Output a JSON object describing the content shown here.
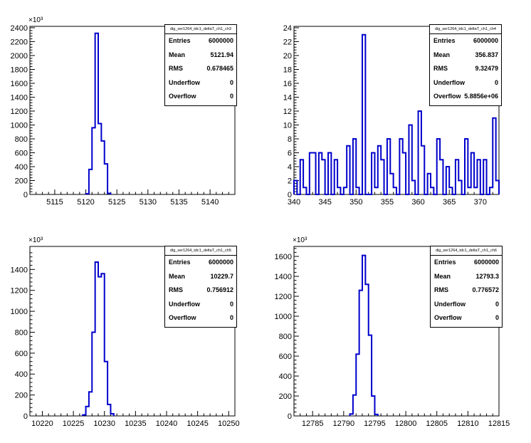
{
  "chart_data": [
    {
      "type": "bar",
      "title": "dig_ser1264_tdc1_deltaT_ch1_ch3",
      "exponent_label": "×10³",
      "xlim": [
        5111,
        5144
      ],
      "ylim": [
        0,
        2420
      ],
      "xticks": [
        5115,
        5120,
        5125,
        5130,
        5135,
        5140
      ],
      "yticks": [
        0,
        200,
        400,
        600,
        800,
        1000,
        1200,
        1400,
        1600,
        1800,
        2000,
        2200,
        2400
      ],
      "bin_width": 0.5,
      "bins": [
        [
          5120.0,
          10
        ],
        [
          5120.5,
          360
        ],
        [
          5121.0,
          960
        ],
        [
          5121.5,
          2320
        ],
        [
          5122.0,
          1020
        ],
        [
          5122.5,
          770
        ],
        [
          5123.0,
          440
        ],
        [
          5123.5,
          15
        ]
      ],
      "stats": {
        "name": "dig_ser1264_tdc1_deltaT_ch1_ch3",
        "rows": [
          {
            "label": "Entries",
            "value": "6000000"
          },
          {
            "label": "Mean",
            "value": "5121.94"
          },
          {
            "label": "RMS",
            "value": "0.678465"
          },
          {
            "label": "Underflow",
            "value": "0"
          },
          {
            "label": "Overflow",
            "value": "0"
          }
        ]
      }
    },
    {
      "type": "bar",
      "title": "dig_ser1264_tdc1_deltaT_ch1_ch4",
      "exponent_label": "",
      "xlim": [
        340,
        373
      ],
      "ylim": [
        0,
        24.2
      ],
      "xticks": [
        340,
        345,
        350,
        355,
        360,
        365,
        370
      ],
      "yticks": [
        0,
        2,
        4,
        6,
        8,
        10,
        12,
        14,
        16,
        18,
        20,
        22,
        24
      ],
      "bin_width": 0.5,
      "bins": [
        [
          340.0,
          2
        ],
        [
          340.5,
          0
        ],
        [
          341.0,
          5
        ],
        [
          341.5,
          1
        ],
        [
          342.0,
          0
        ],
        [
          342.5,
          6
        ],
        [
          343.0,
          6
        ],
        [
          343.5,
          0
        ],
        [
          344.0,
          6
        ],
        [
          344.5,
          5
        ],
        [
          345.0,
          0
        ],
        [
          345.5,
          6
        ],
        [
          346.0,
          0
        ],
        [
          346.5,
          5
        ],
        [
          347.0,
          1
        ],
        [
          347.5,
          0
        ],
        [
          348.0,
          1
        ],
        [
          348.5,
          7
        ],
        [
          349.0,
          0
        ],
        [
          349.5,
          8
        ],
        [
          350.0,
          1
        ],
        [
          350.5,
          0
        ],
        [
          351.0,
          23
        ],
        [
          351.5,
          0
        ],
        [
          352.0,
          0
        ],
        [
          352.5,
          6
        ],
        [
          353.0,
          1
        ],
        [
          353.5,
          7
        ],
        [
          354.0,
          5
        ],
        [
          354.5,
          0
        ],
        [
          355.0,
          8
        ],
        [
          355.5,
          3
        ],
        [
          356.0,
          1
        ],
        [
          356.5,
          0
        ],
        [
          357.0,
          8
        ],
        [
          357.5,
          6
        ],
        [
          358.0,
          0
        ],
        [
          358.5,
          10
        ],
        [
          359.0,
          2
        ],
        [
          359.5,
          0
        ],
        [
          360.0,
          12
        ],
        [
          360.5,
          7
        ],
        [
          361.0,
          0
        ],
        [
          361.5,
          3
        ],
        [
          362.0,
          1
        ],
        [
          362.5,
          0
        ],
        [
          363.0,
          8
        ],
        [
          363.5,
          5
        ],
        [
          364.0,
          0
        ],
        [
          364.5,
          4
        ],
        [
          365.0,
          1
        ],
        [
          365.5,
          0
        ],
        [
          366.0,
          5
        ],
        [
          366.5,
          2
        ],
        [
          367.0,
          0
        ],
        [
          367.5,
          8
        ],
        [
          368.0,
          1
        ],
        [
          368.5,
          6
        ],
        [
          369.0,
          1
        ],
        [
          369.5,
          5
        ],
        [
          370.0,
          0
        ],
        [
          370.5,
          5
        ],
        [
          371.0,
          0
        ],
        [
          371.5,
          1
        ],
        [
          372.0,
          11
        ],
        [
          372.5,
          2
        ]
      ],
      "stats": {
        "name": "dig_ser1264_tdc1_deltaT_ch1_ch4",
        "rows": [
          {
            "label": "Entries",
            "value": "6000000"
          },
          {
            "label": "Mean",
            "value": "356.837"
          },
          {
            "label": "RMS",
            "value": "9.32479"
          },
          {
            "label": "Underflow",
            "value": "0"
          },
          {
            "label": "Overflow",
            "value": "5.8856e+06"
          }
        ]
      }
    },
    {
      "type": "bar",
      "title": "dig_ser1264_tdc1_deltaT_ch1_ch5",
      "exponent_label": "×10³",
      "xlim": [
        10218,
        10251
      ],
      "ylim": [
        0,
        1620
      ],
      "xticks": [
        10220,
        10225,
        10230,
        10235,
        10240,
        10245,
        10250
      ],
      "yticks": [
        0,
        200,
        400,
        600,
        800,
        1000,
        1200,
        1400
      ],
      "bin_width": 0.5,
      "bins": [
        [
          10226.5,
          10
        ],
        [
          10227.0,
          90
        ],
        [
          10227.5,
          230
        ],
        [
          10228.0,
          800
        ],
        [
          10228.5,
          1470
        ],
        [
          10229.0,
          1330
        ],
        [
          10229.5,
          1360
        ],
        [
          10230.0,
          520
        ],
        [
          10230.5,
          110
        ],
        [
          10231.0,
          20
        ]
      ],
      "stats": {
        "name": "dig_ser1264_tdc1_deltaT_ch1_ch5",
        "rows": [
          {
            "label": "Entries",
            "value": "6000000"
          },
          {
            "label": "Mean",
            "value": "10229.7"
          },
          {
            "label": "RMS",
            "value": "0.756912"
          },
          {
            "label": "Underflow",
            "value": "0"
          },
          {
            "label": "Overflow",
            "value": "0"
          }
        ]
      }
    },
    {
      "type": "bar",
      "title": "dig_ser1264_tdc1_deltaT_ch1_ch6",
      "exponent_label": "×10³",
      "xlim": [
        12782,
        12815
      ],
      "ylim": [
        0,
        1700
      ],
      "xticks": [
        12785,
        12790,
        12795,
        12800,
        12805,
        12810,
        12815
      ],
      "yticks": [
        0,
        200,
        400,
        600,
        800,
        1000,
        1200,
        1400,
        1600
      ],
      "bin_width": 0.5,
      "bins": [
        [
          12791.0,
          20
        ],
        [
          12791.5,
          210
        ],
        [
          12792.0,
          620
        ],
        [
          12792.5,
          1260
        ],
        [
          12793.0,
          1610
        ],
        [
          12793.5,
          1320
        ],
        [
          12794.0,
          810
        ],
        [
          12794.5,
          200
        ],
        [
          12795.0,
          15
        ]
      ],
      "stats": {
        "name": "dig_ser1264_tdc1_deltaT_ch1_ch6",
        "rows": [
          {
            "label": "Entries",
            "value": "6000000"
          },
          {
            "label": "Mean",
            "value": "12793.3"
          },
          {
            "label": "RMS",
            "value": "0.776572"
          },
          {
            "label": "Underflow",
            "value": "0"
          },
          {
            "label": "Overflow",
            "value": "0"
          }
        ]
      }
    }
  ],
  "colors": {
    "histogram": "#0000cc",
    "axis": "#000000",
    "background": "#ffffff"
  }
}
